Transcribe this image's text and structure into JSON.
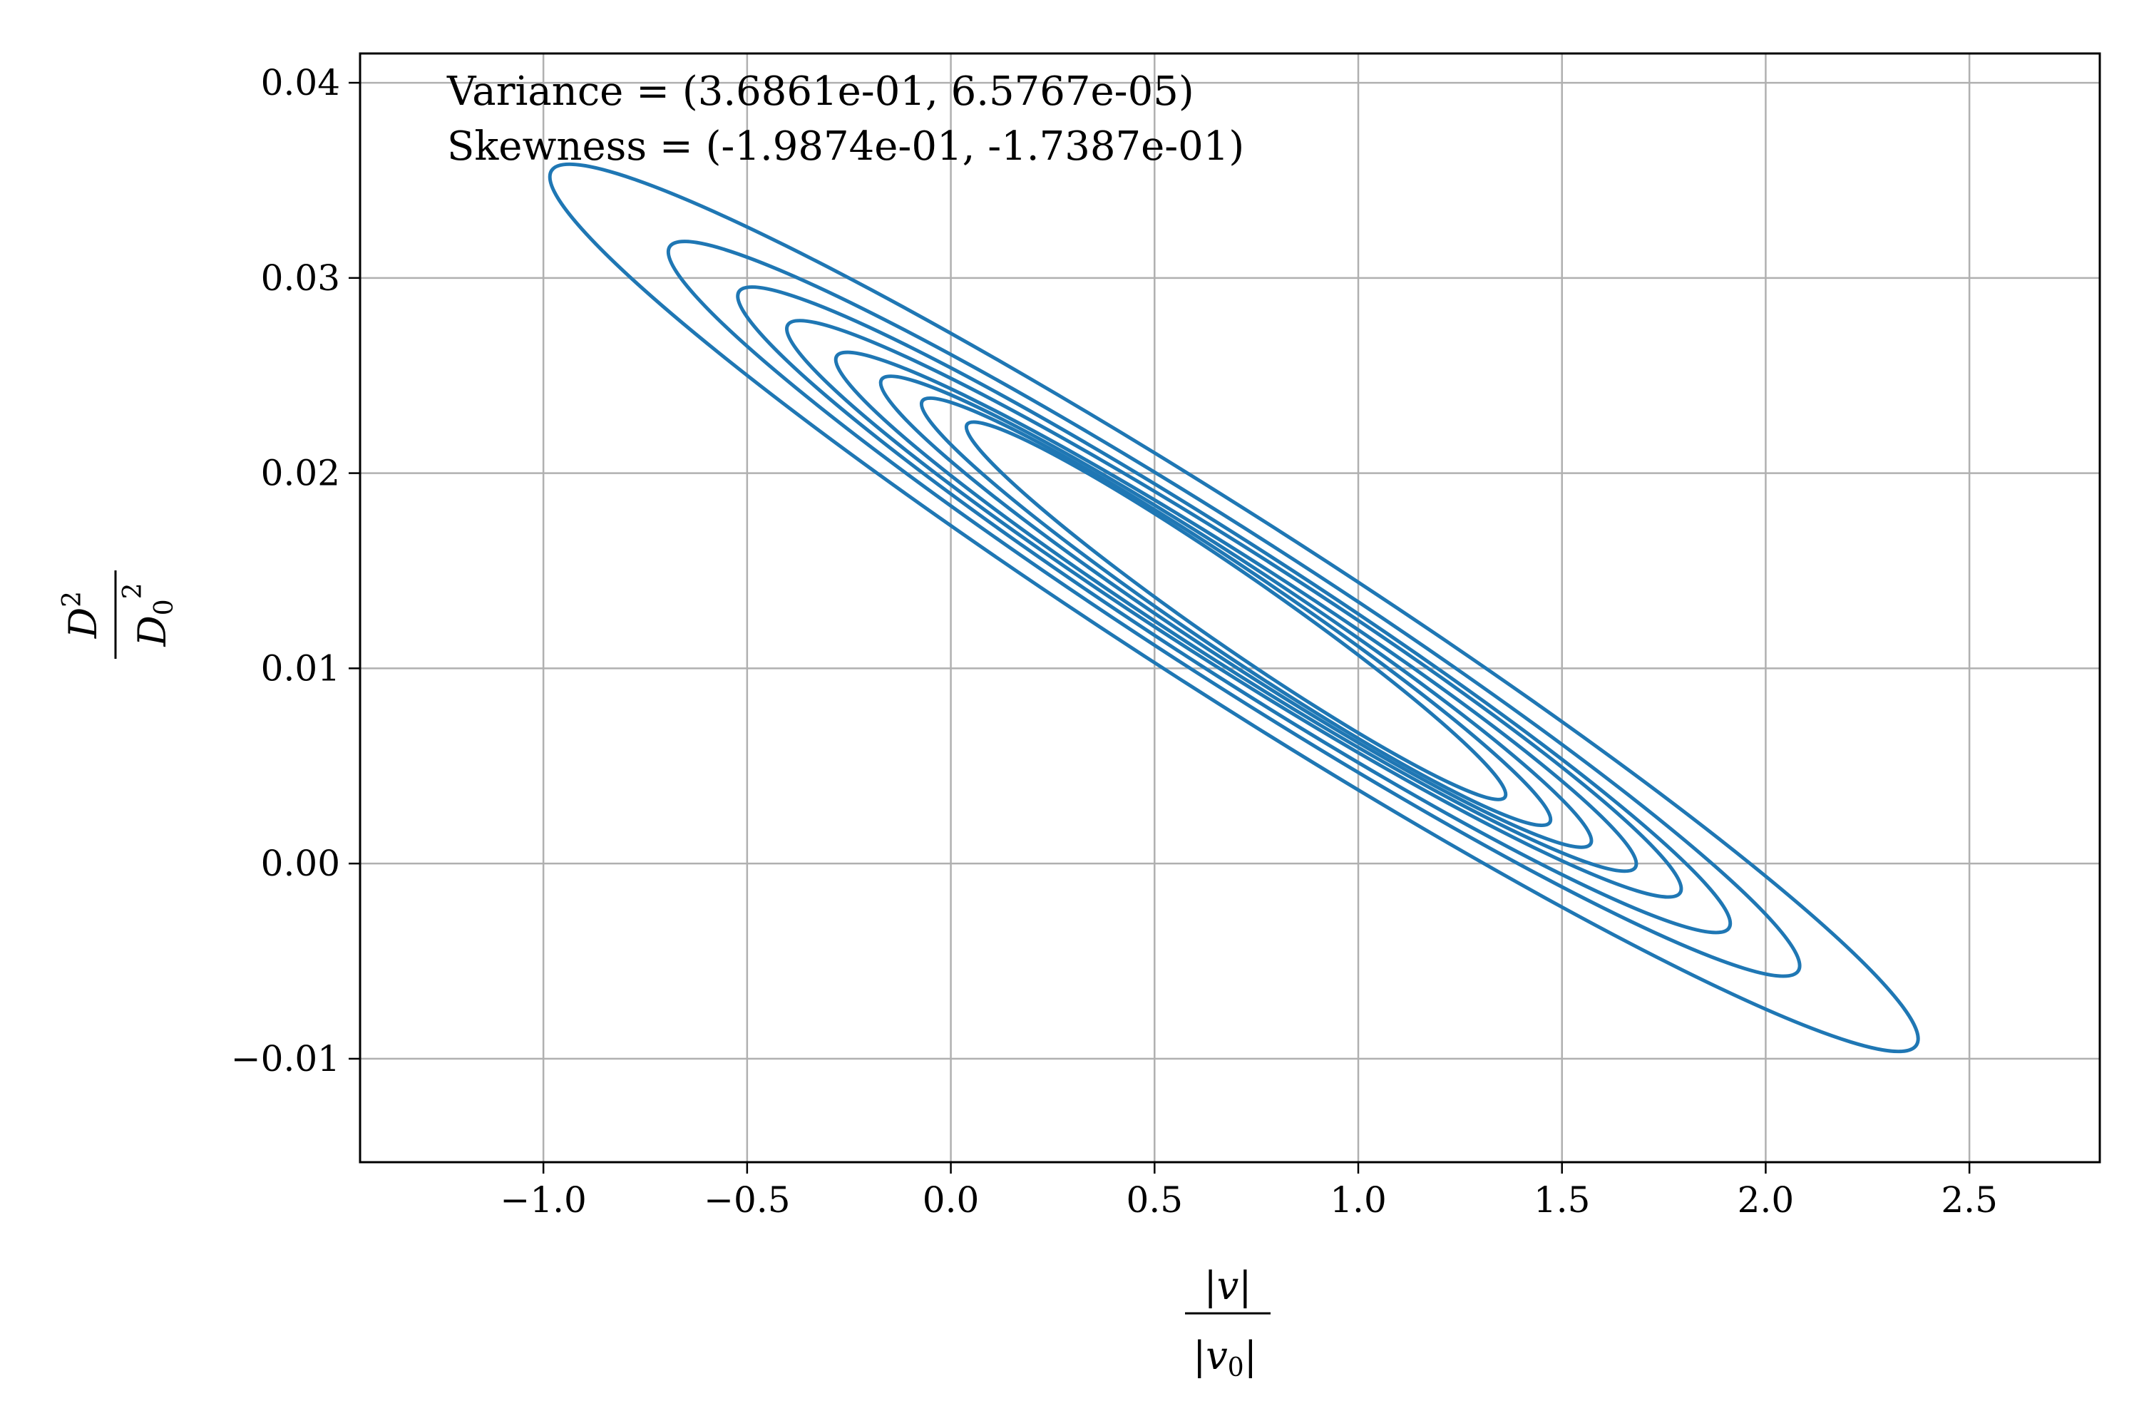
{
  "chart_data": {
    "type": "contour",
    "title": "",
    "xlabel": "|v| / |v_0|",
    "ylabel": "D^2 / D_0^2",
    "xlim": [
      -1.45,
      2.82
    ],
    "ylim": [
      -0.0153,
      0.0415
    ],
    "xticks": [
      -1.0,
      -0.5,
      0.0,
      0.5,
      1.0,
      1.5,
      2.0,
      2.5
    ],
    "xtick_labels": [
      "−1.0",
      "−0.5",
      "0.0",
      "0.5",
      "1.0",
      "1.5",
      "2.0",
      "2.5"
    ],
    "yticks": [
      -0.01,
      0.0,
      0.01,
      0.02,
      0.03,
      0.04
    ],
    "ytick_labels": [
      "−0.01",
      "0.00",
      "0.01",
      "0.02",
      "0.03",
      "0.04"
    ],
    "grid": true,
    "color": "#1f77b4",
    "annotations": [
      "Variance = (3.6861e-01, 6.5767e-05)",
      "Skewness = (-1.9874e-01, -1.7387e-01)"
    ],
    "contours": [
      {
        "x_range": [
          -0.98,
          2.37
        ],
        "y_range": [
          -0.0093,
          0.0355
        ]
      },
      {
        "x_range": [
          -0.69,
          2.08
        ],
        "y_range": [
          -0.0055,
          0.0316
        ]
      },
      {
        "x_range": [
          -0.52,
          1.91
        ],
        "y_range": [
          -0.0033,
          0.0293
        ]
      },
      {
        "x_range": [
          -0.4,
          1.79
        ],
        "y_range": [
          -0.0015,
          0.0276
        ]
      },
      {
        "x_range": [
          -0.28,
          1.68
        ],
        "y_range": [
          -0.0002,
          0.026
        ]
      },
      {
        "x_range": [
          -0.17,
          1.57
        ],
        "y_range": [
          0.001,
          0.0248
        ]
      },
      {
        "x_range": [
          -0.07,
          1.47
        ],
        "y_range": [
          0.0021,
          0.0237
        ]
      },
      {
        "x_range": [
          0.04,
          1.36
        ],
        "y_range": [
          0.0034,
          0.0225
        ]
      }
    ]
  }
}
